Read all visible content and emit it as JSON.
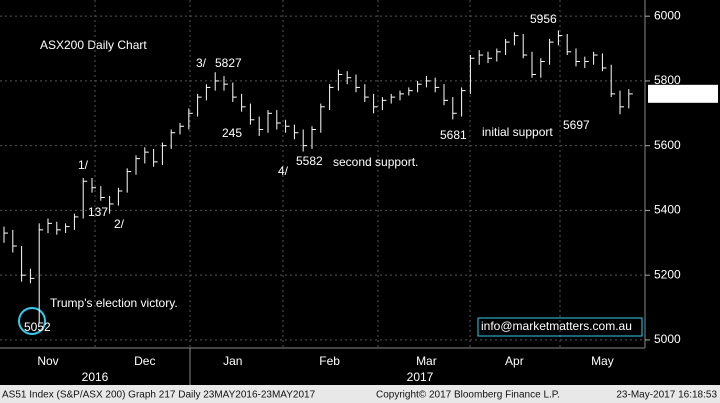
{
  "chart_data": {
    "type": "ohlc",
    "title": "ASX200 Daily Chart",
    "title_color": "#33dd33",
    "color": "#ffffff",
    "categories": [
      null,
      null,
      null,
      null,
      null,
      "Nov",
      null,
      null,
      null,
      null,
      null,
      null,
      null,
      null,
      null,
      null,
      "Dec",
      null,
      null,
      null,
      null,
      null,
      null,
      null,
      null,
      null,
      "Jan",
      null,
      null,
      null,
      null,
      null,
      null,
      null,
      null,
      null,
      null,
      "Feb",
      null,
      null,
      null,
      null,
      null,
      null,
      null,
      null,
      null,
      null,
      "Mar",
      null,
      null,
      null,
      null,
      null,
      null,
      null,
      null,
      null,
      "Apr",
      null,
      null,
      null,
      null,
      null,
      null,
      null,
      null,
      null,
      "May",
      null,
      null,
      null
    ],
    "high": [
      5350,
      5340,
      5290,
      5220,
      5360,
      5375,
      5365,
      5360,
      5390,
      5500,
      5500,
      5475,
      5445,
      5470,
      5530,
      5570,
      5595,
      5590,
      5610,
      5650,
      5670,
      5715,
      5760,
      5790,
      5827,
      5815,
      5795,
      5760,
      5730,
      5690,
      5710,
      5710,
      5680,
      5665,
      5650,
      5660,
      5730,
      5790,
      5835,
      5830,
      5820,
      5790,
      5760,
      5750,
      5760,
      5770,
      5780,
      5800,
      5815,
      5810,
      5790,
      5750,
      5780,
      5880,
      5895,
      5890,
      5900,
      5930,
      5950,
      5945,
      5890,
      5870,
      5930,
      5956,
      5945,
      5900,
      5875,
      5890,
      5885,
      5850,
      5770,
      5775
    ],
    "low": [
      5300,
      5270,
      5180,
      5175,
      5052,
      5330,
      5325,
      5330,
      5340,
      5375,
      5455,
      5430,
      5390,
      5415,
      5455,
      5510,
      5545,
      5535,
      5540,
      5590,
      5635,
      5650,
      5690,
      5740,
      5770,
      5770,
      5735,
      5705,
      5665,
      5630,
      5640,
      5650,
      5640,
      5620,
      5582,
      5590,
      5640,
      5710,
      5770,
      5790,
      5765,
      5735,
      5700,
      5710,
      5730,
      5740,
      5755,
      5765,
      5780,
      5765,
      5725,
      5681,
      5690,
      5760,
      5850,
      5855,
      5860,
      5880,
      5910,
      5870,
      5810,
      5810,
      5850,
      5910,
      5880,
      5845,
      5840,
      5850,
      5830,
      5750,
      5697,
      5715
    ],
    "close": [
      5330,
      5290,
      5200,
      5190,
      5340,
      5360,
      5340,
      5350,
      5380,
      5490,
      5470,
      5440,
      5420,
      5460,
      5520,
      5560,
      5580,
      5550,
      5600,
      5640,
      5660,
      5700,
      5750,
      5780,
      5800,
      5790,
      5750,
      5720,
      5680,
      5650,
      5700,
      5670,
      5660,
      5640,
      5600,
      5650,
      5720,
      5780,
      5820,
      5810,
      5780,
      5750,
      5720,
      5740,
      5750,
      5760,
      5770,
      5790,
      5800,
      5780,
      5740,
      5700,
      5770,
      5870,
      5880,
      5870,
      5890,
      5920,
      5940,
      5880,
      5820,
      5860,
      5920,
      5940,
      5890,
      5860,
      5860,
      5880,
      5840,
      5760,
      5720,
      5760
    ],
    "ylim": [
      4975,
      6050
    ],
    "yticks": [
      5000,
      5200,
      5400,
      5600,
      5800,
      6000
    ],
    "grid": true,
    "last_price": 5760.2002,
    "year_labels": [
      "2016",
      "2017"
    ],
    "annotations": [
      {
        "text": "3/",
        "color": "#33dd33"
      },
      {
        "text": "5827",
        "color": "#ffffff"
      },
      {
        "text": "245",
        "color": "#ffdd33"
      },
      {
        "text": "1/",
        "color": "#33dd33"
      },
      {
        "text": "137",
        "color": "#ffdd33"
      },
      {
        "text": "2/",
        "color": "#33dd33"
      },
      {
        "text": "4/",
        "color": "#33dd33"
      },
      {
        "text": "5582",
        "color": "#ffffff"
      },
      {
        "text": "second support.",
        "color": "#33ccee"
      },
      {
        "text": "5681",
        "color": "#ffffff"
      },
      {
        "text": "initial support",
        "color": "#33ccee"
      },
      {
        "text": "5956",
        "color": "#ffffff"
      },
      {
        "text": "5697",
        "color": "#ffffff"
      },
      {
        "text": "Trump's election victory.",
        "color": "#33ccee"
      },
      {
        "text": "5052",
        "color": "#ffffff"
      },
      {
        "text": "info@marketmatters.com.au",
        "color": "#ffffff"
      }
    ],
    "footer": {
      "left": "AS51 Index (S&P/ASX 200) Graph 217 Daily 23MAY2016-23MAY2017",
      "middle": "Copyright© 2017 Bloomberg Finance L.P.",
      "right": "23-May-2017 16:18:53"
    }
  }
}
